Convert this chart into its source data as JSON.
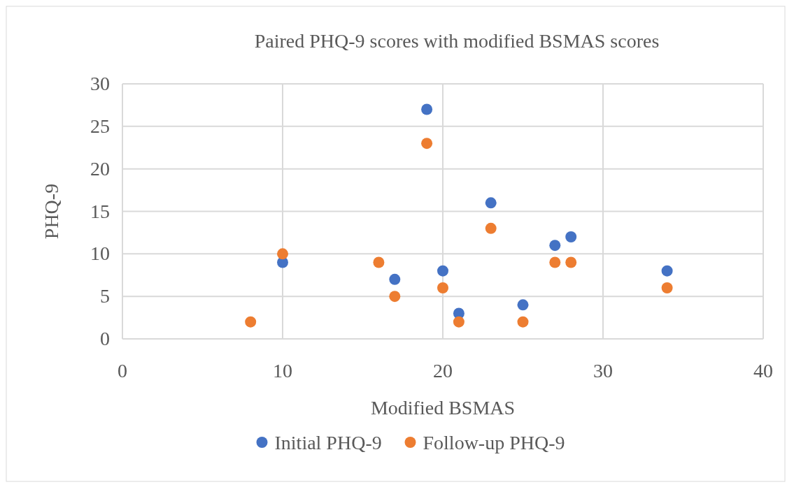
{
  "chart_data": {
    "type": "scatter",
    "title": "Paired PHQ-9 scores with modified BSMAS scores",
    "xlabel": "Modified BSMAS",
    "ylabel": "PHQ-9",
    "x": [
      8,
      10,
      16,
      17,
      19,
      20,
      21,
      23,
      25,
      27,
      28,
      34
    ],
    "series": [
      {
        "name": "Initial PHQ-9",
        "color": "#4472c4",
        "values": [
          null,
          9,
          null,
          7,
          27,
          8,
          3,
          16,
          4,
          11,
          12,
          8
        ]
      },
      {
        "name": "Follow-up PHQ-9",
        "color": "#ed7d31",
        "values": [
          2,
          10,
          9,
          5,
          23,
          6,
          2,
          13,
          2,
          9,
          9,
          6
        ]
      }
    ],
    "xlim": [
      0,
      40
    ],
    "xticks": [
      0,
      10,
      20,
      30,
      40
    ],
    "ylim": [
      0,
      30
    ],
    "yticks": [
      0,
      5,
      10,
      15,
      20,
      25,
      30
    ],
    "grid": true,
    "legend": "bottom",
    "marker": "circle"
  }
}
